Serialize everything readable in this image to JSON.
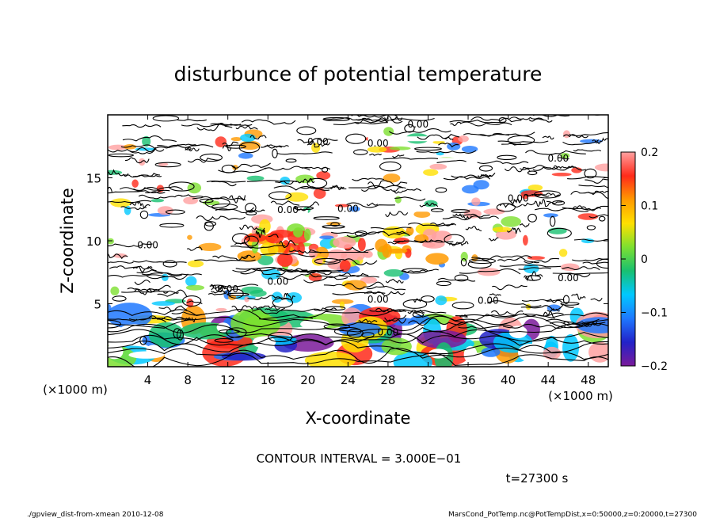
{
  "chart_data": {
    "type": "heatmap",
    "title": "disturbunce of potential temperature",
    "xlabel": "X-coordinate",
    "ylabel": "Z-coordinate",
    "x_unit": "(×1000 m)",
    "y_unit": "(×1000 m)",
    "x_ticks": [
      4,
      8,
      12,
      16,
      20,
      24,
      28,
      32,
      36,
      40,
      44,
      48
    ],
    "y_ticks": [
      5,
      10,
      15
    ],
    "xlim": [
      0,
      50
    ],
    "ylim": [
      0,
      20
    ],
    "colorbar": {
      "ticks": [
        "0.2",
        "0.1",
        "0",
        "−0.1",
        "−0.2"
      ],
      "tick_values": [
        0.2,
        0.1,
        0,
        -0.1,
        -0.2
      ],
      "range": [
        -0.2,
        0.2
      ],
      "colors": [
        "#7a1a9a",
        "#2222c8",
        "#1e78ff",
        "#00c8ff",
        "#18c070",
        "#7de030",
        "#ffe000",
        "#ff9a00",
        "#ff2a1a",
        "#ffa0a0"
      ]
    },
    "contour_label": "0.00",
    "contour_interval_text": "CONTOUR INTERVAL = 3.000E−01",
    "time_text": "t=27300 s"
  },
  "footer": {
    "left": "./gpview_dist-from-xmean  2010-12-08",
    "right": "MarsCond_PotTemp.nc@PotTempDist,x=0:50000,z=0:20000,t=27300"
  }
}
